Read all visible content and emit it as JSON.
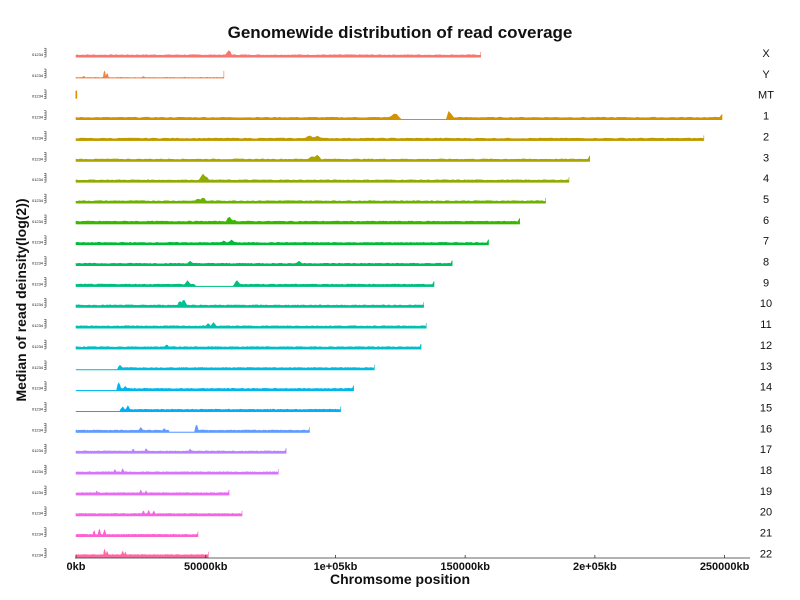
{
  "chart_data": {
    "type": "area",
    "title": "Genomewide distribution of read coverage",
    "xlabel": "Chromsome position",
    "ylabel": "Median of read deinsity(log(2))",
    "xlim": [
      0,
      260000
    ],
    "x_ticks": [
      {
        "value": 0,
        "label": "0kb"
      },
      {
        "value": 50000,
        "label": "50000kb"
      },
      {
        "value": 100000,
        "label": "1e+05kb"
      },
      {
        "value": 150000,
        "label": "150000kb"
      },
      {
        "value": 200000,
        "label": "2e+05kb"
      },
      {
        "value": 250000,
        "label": "250000kb"
      }
    ],
    "y_tick_labels": [
      "0",
      "1",
      "2",
      "3",
      "4"
    ],
    "facet_orientation": "rows",
    "grid": false,
    "legend": "none",
    "series": [
      {
        "name": "X",
        "color": "#F8766D",
        "length_kb": 156000,
        "baseline": 1.0,
        "gaps": [],
        "peaks": [
          [
            59000,
            3.5
          ]
        ]
      },
      {
        "name": "Y",
        "color": "#EE8042",
        "length_kb": 57000,
        "baseline": 0.1,
        "gaps": [],
        "peaks": [
          [
            3000,
            0.8
          ],
          [
            11000,
            3.5
          ],
          [
            12000,
            2.2
          ],
          [
            26000,
            0.7
          ],
          [
            42000,
            0.4
          ]
        ]
      },
      {
        "name": "MT",
        "color": "#E38900",
        "length_kb": 16.5,
        "baseline": 2.0,
        "gaps": [],
        "peaks": []
      },
      {
        "name": "1",
        "color": "#D39200",
        "length_kb": 249000,
        "baseline": 1.0,
        "gaps": [
          [
            125000,
            143000
          ]
        ],
        "peaks": [
          [
            123000,
            3.2
          ],
          [
            143500,
            4.2
          ]
        ]
      },
      {
        "name": "2",
        "color": "#C09B00",
        "length_kb": 242000,
        "baseline": 1.0,
        "gaps": [],
        "peaks": [
          [
            90000,
            2.5
          ],
          [
            93000,
            2.2
          ]
        ]
      },
      {
        "name": "3",
        "color": "#A9A400",
        "length_kb": 198000,
        "baseline": 1.0,
        "gaps": [],
        "peaks": [
          [
            91000,
            2.6
          ],
          [
            93000,
            3.2
          ]
        ]
      },
      {
        "name": "4",
        "color": "#8FAA00",
        "length_kb": 190000,
        "baseline": 1.0,
        "gaps": [],
        "peaks": [
          [
            49000,
            4.0
          ],
          [
            50000,
            3.0
          ]
        ]
      },
      {
        "name": "5",
        "color": "#6CB100",
        "length_kb": 181000,
        "baseline": 1.0,
        "gaps": [],
        "peaks": [
          [
            47000,
            2.2
          ],
          [
            49000,
            2.8
          ]
        ]
      },
      {
        "name": "6",
        "color": "#3AB600",
        "length_kb": 171000,
        "baseline": 1.2,
        "gaps": [],
        "peaks": [
          [
            59000,
            3.6
          ],
          [
            61000,
            2.0
          ]
        ]
      },
      {
        "name": "7",
        "color": "#00BA38",
        "length_kb": 159000,
        "baseline": 1.0,
        "gaps": [],
        "peaks": [
          [
            57000,
            2.0
          ],
          [
            60000,
            2.4
          ]
        ]
      },
      {
        "name": "8",
        "color": "#00BD61",
        "length_kb": 145000,
        "baseline": 1.0,
        "gaps": [],
        "peaks": [
          [
            44000,
            2.2
          ],
          [
            86000,
            2.3
          ]
        ]
      },
      {
        "name": "9",
        "color": "#00BF7D",
        "length_kb": 138000,
        "baseline": 1.0,
        "gaps": [
          [
            46000,
            61000
          ]
        ],
        "peaks": [
          [
            43000,
            2.8
          ],
          [
            62000,
            3.0
          ]
        ]
      },
      {
        "name": "10",
        "color": "#00C097",
        "length_kb": 134000,
        "baseline": 1.0,
        "gaps": [],
        "peaks": [
          [
            40000,
            3.2
          ],
          [
            41500,
            4.0
          ]
        ]
      },
      {
        "name": "11",
        "color": "#00C0AF",
        "length_kb": 135000,
        "baseline": 1.0,
        "gaps": [],
        "peaks": [
          [
            51000,
            2.4
          ],
          [
            53000,
            2.8
          ]
        ]
      },
      {
        "name": "12",
        "color": "#00BEC5",
        "length_kb": 133000,
        "baseline": 1.0,
        "gaps": [],
        "peaks": [
          [
            35000,
            2.2
          ]
        ]
      },
      {
        "name": "13",
        "color": "#00BBDB",
        "length_kb": 115000,
        "baseline": 1.0,
        "gaps": [
          [
            0,
            16000
          ]
        ],
        "peaks": [
          [
            17000,
            2.4
          ]
        ]
      },
      {
        "name": "14",
        "color": "#00B6EB",
        "length_kb": 107000,
        "baseline": 1.0,
        "gaps": [
          [
            0,
            16000
          ]
        ],
        "peaks": [
          [
            16500,
            4.0
          ],
          [
            19000,
            2.2
          ]
        ]
      },
      {
        "name": "15",
        "color": "#00B0F6",
        "length_kb": 102000,
        "baseline": 1.0,
        "gaps": [
          [
            0,
            17000
          ]
        ],
        "peaks": [
          [
            18000,
            2.4
          ],
          [
            20000,
            2.8
          ]
        ]
      },
      {
        "name": "16",
        "color": "#619CFF",
        "length_kb": 90000,
        "baseline": 1.0,
        "gaps": [
          [
            36000,
            46000
          ]
        ],
        "peaks": [
          [
            25000,
            2.6
          ],
          [
            34000,
            2.0
          ],
          [
            46500,
            4.0
          ]
        ]
      },
      {
        "name": "17",
        "color": "#B983FF",
        "length_kb": 81000,
        "baseline": 1.0,
        "gaps": [],
        "peaks": [
          [
            22000,
            2.2
          ],
          [
            27000,
            2.4
          ],
          [
            44000,
            2.2
          ]
        ]
      },
      {
        "name": "18",
        "color": "#D575FE",
        "length_kb": 78000,
        "baseline": 1.0,
        "gaps": [],
        "peaks": [
          [
            15000,
            2.2
          ],
          [
            18000,
            2.6
          ]
        ]
      },
      {
        "name": "19",
        "color": "#E76BF3",
        "length_kb": 59000,
        "baseline": 1.0,
        "gaps": [],
        "peaks": [
          [
            8000,
            2.0
          ],
          [
            25000,
            2.4
          ],
          [
            27000,
            2.0
          ]
        ]
      },
      {
        "name": "20",
        "color": "#F564E3",
        "length_kb": 64000,
        "baseline": 1.0,
        "gaps": [],
        "peaks": [
          [
            26000,
            2.6
          ],
          [
            28000,
            2.8
          ],
          [
            30000,
            2.4
          ]
        ]
      },
      {
        "name": "21",
        "color": "#FD61D1",
        "length_kb": 47000,
        "baseline": 1.0,
        "gaps": [],
        "peaks": [
          [
            7000,
            3.0
          ],
          [
            9000,
            3.8
          ],
          [
            11000,
            3.4
          ]
        ]
      },
      {
        "name": "22",
        "color": "#FF67A4",
        "length_kb": 51000,
        "baseline": 1.3,
        "gaps": [],
        "peaks": [
          [
            11000,
            4.0
          ],
          [
            12000,
            3.0
          ],
          [
            18000,
            3.2
          ],
          [
            19000,
            2.6
          ]
        ]
      }
    ]
  }
}
